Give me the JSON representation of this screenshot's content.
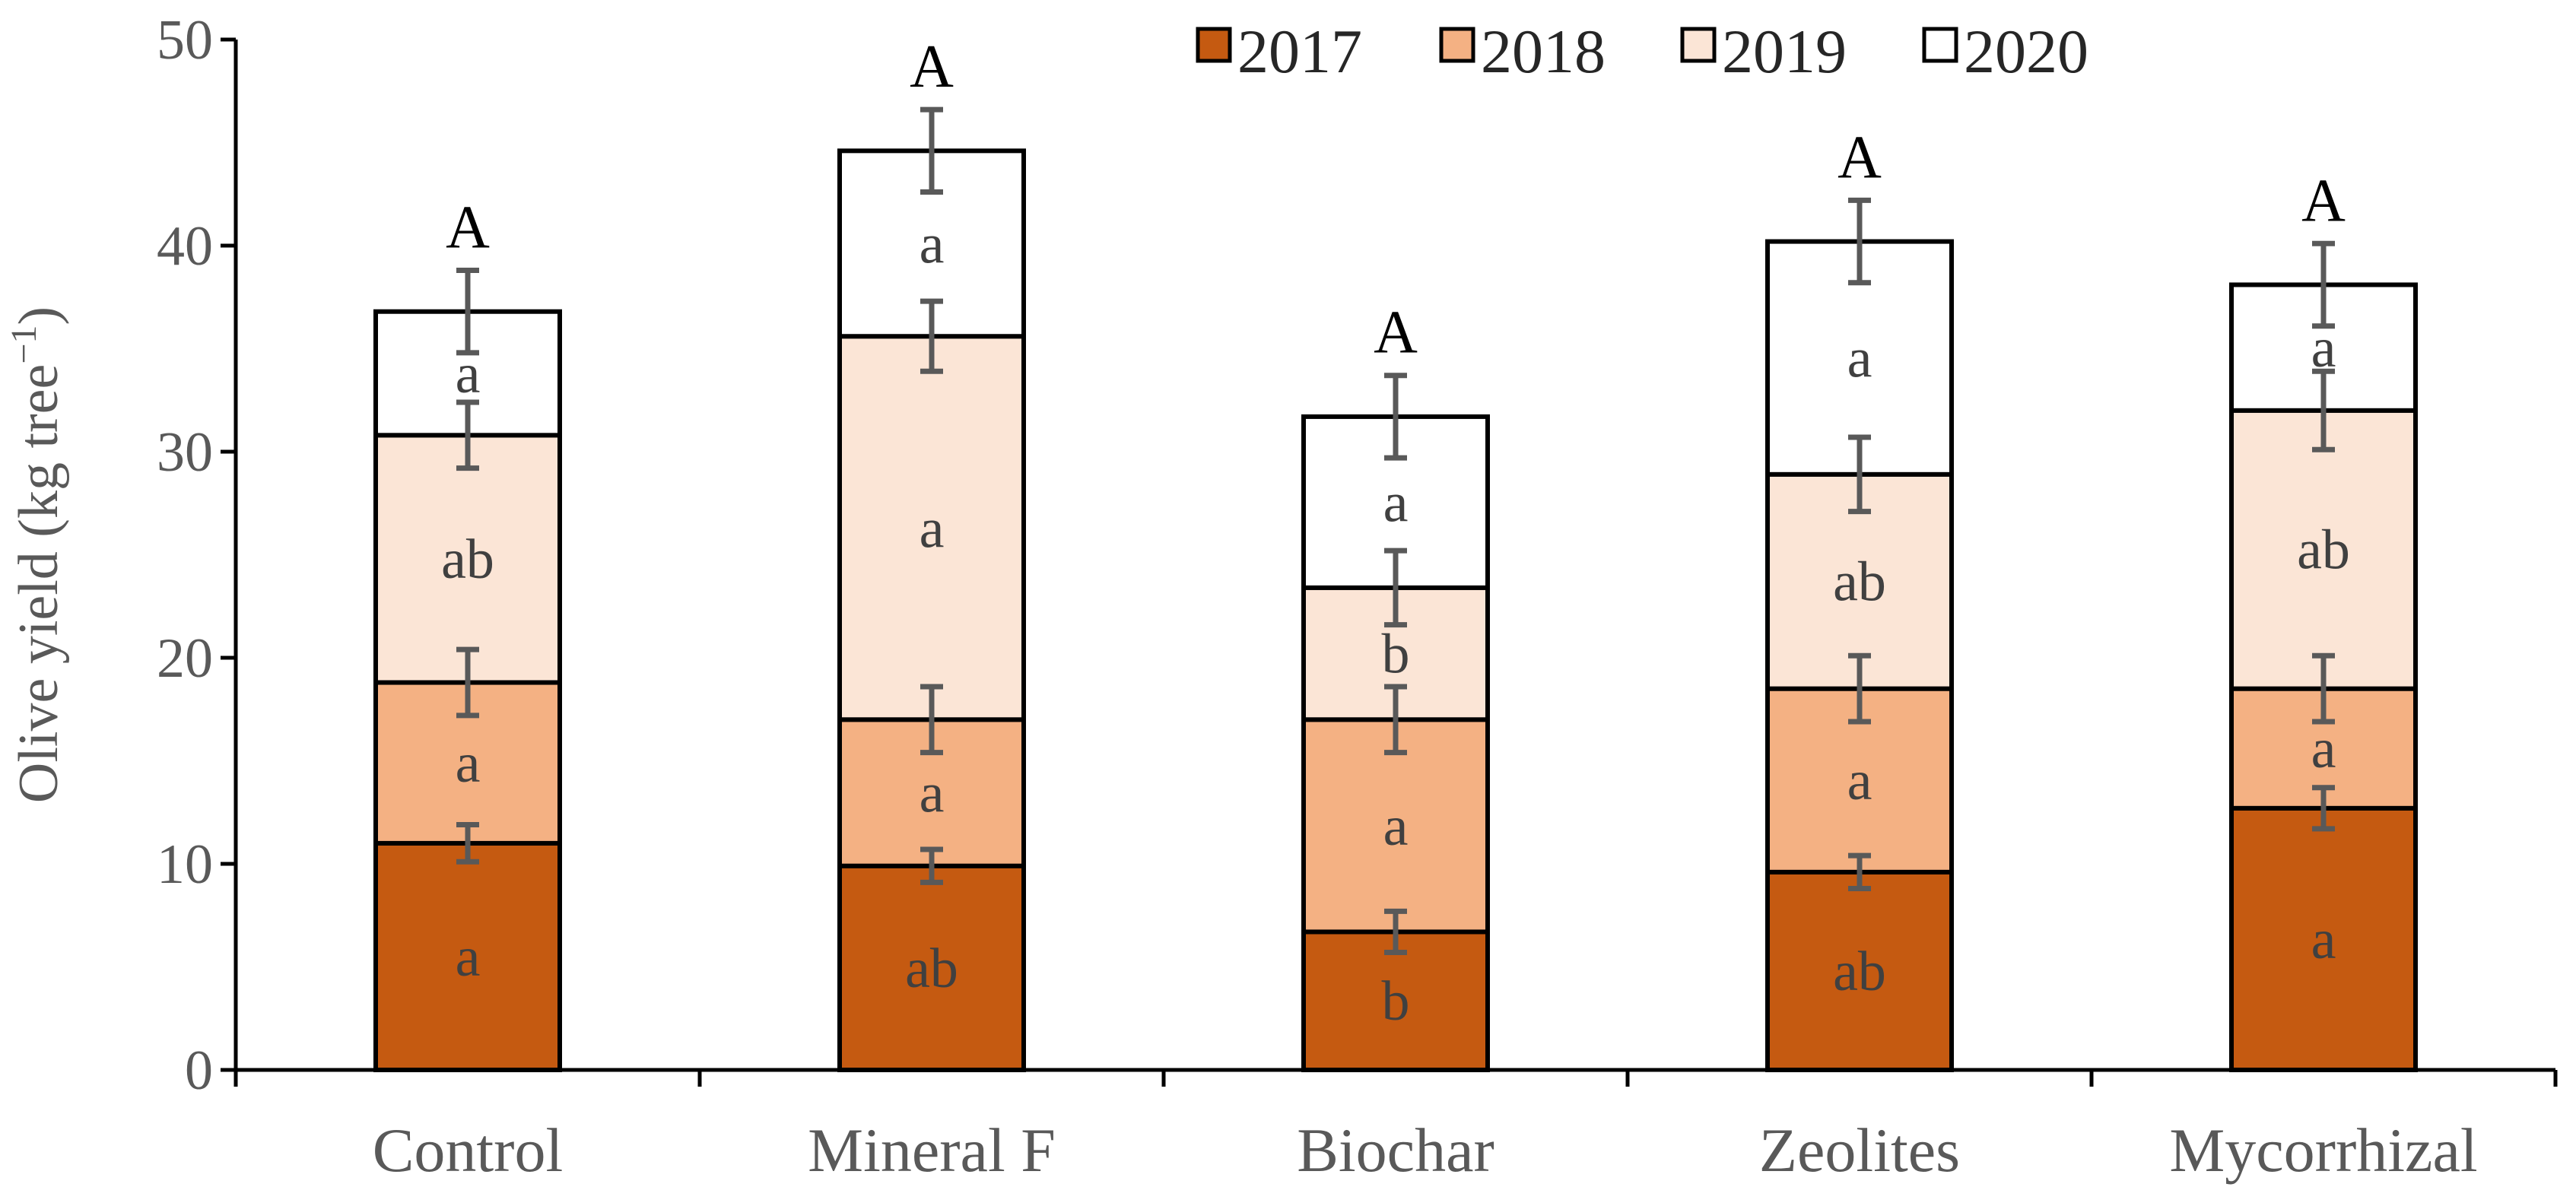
{
  "chart_data": {
    "type": "bar",
    "stacked": true,
    "ylabel_main": "Olive yield (kg tree",
    "ylabel_sup": "−1",
    "ylabel_close": ")",
    "ylim": [
      0,
      50
    ],
    "yticks": [
      "0",
      "10",
      "20",
      "30",
      "40",
      "50"
    ],
    "ytick_values": [
      0,
      10,
      20,
      30,
      40,
      50
    ],
    "legend_position": "top-right",
    "categories": [
      "Control",
      "Mineral F",
      "Biochar",
      "Zeolites",
      "Mycorrhizal"
    ],
    "series": [
      {
        "name": "2017",
        "color": "#C55A11",
        "values": [
          11.0,
          9.9,
          6.7,
          9.6,
          12.7
        ],
        "errors": [
          0.9,
          0.8,
          1.0,
          0.8,
          1.0
        ],
        "letters": [
          "a",
          "ab",
          "b",
          "ab",
          "a"
        ]
      },
      {
        "name": "2018",
        "color": "#F4B183",
        "values": [
          7.8,
          7.1,
          10.3,
          8.9,
          5.8
        ],
        "errors": [
          1.6,
          1.6,
          1.6,
          1.6,
          1.6
        ],
        "letters": [
          "a",
          "a",
          "a",
          "a",
          "a"
        ]
      },
      {
        "name": "2019",
        "color": "#FBE5D6",
        "values": [
          12.0,
          18.6,
          6.4,
          10.4,
          13.5
        ],
        "errors": [
          1.6,
          1.7,
          1.8,
          1.8,
          1.9
        ],
        "letters": [
          "ab",
          "a",
          "b",
          "ab",
          "ab"
        ]
      },
      {
        "name": "2020",
        "color": "#FFFFFF",
        "values": [
          6.0,
          9.0,
          8.3,
          11.3,
          6.1
        ],
        "errors": [
          2.0,
          2.0,
          2.0,
          2.0,
          2.0
        ],
        "letters": [
          "a",
          "a",
          "a",
          "a",
          "a"
        ]
      }
    ],
    "total_letters": [
      "A",
      "A",
      "A",
      "A",
      "A"
    ]
  }
}
